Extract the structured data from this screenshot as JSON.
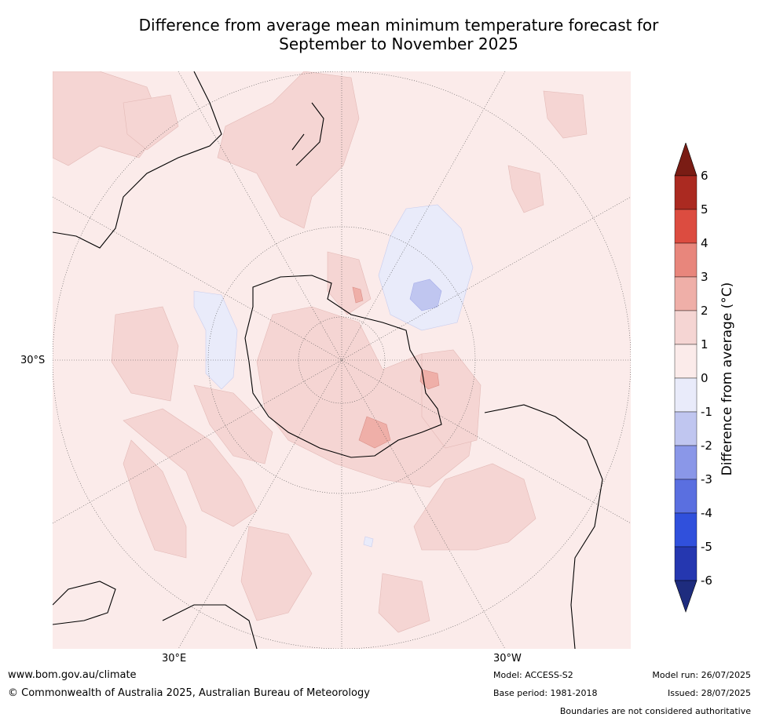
{
  "title_line1": "Difference from average mean minimum temperature forecast for",
  "title_line2": "September to November 2025",
  "map": {
    "lon_labels": [
      "30°E",
      "30°W"
    ],
    "lat_label": "30°S"
  },
  "colorbar": {
    "title": "Difference from average (°C)",
    "ticks": [
      "6",
      "5",
      "4",
      "3",
      "2",
      "1",
      "0",
      "-1",
      "-2",
      "-3",
      "-4",
      "-5",
      "-6"
    ],
    "colors": {
      "over": "#7a1c14",
      "5_to_6": "#ab2a21",
      "4_to_5": "#dc4c40",
      "3_to_4": "#e8867c",
      "2_to_3": "#efafa8",
      "1_to_2": "#f5d5d3",
      "0_to_1": "#fbebea",
      "m1_to_0": "#e9ebfa",
      "m2_to_m1": "#c0c6f0",
      "m3_to_m2": "#8a97e8",
      "m4_to_m3": "#5a6fe0",
      "m5_to_m4": "#3050dc",
      "m6_to_m5": "#2537b0",
      "under": "#1e2c7e"
    }
  },
  "footer": {
    "url": "www.bom.gov.au/climate",
    "copyright": "© Commonwealth of Australia 2025, Australian Bureau of Meteorology",
    "model": "Model: ACCESS-S2",
    "base_period": "Base period: 1981-2018",
    "model_run": "Model run: 26/07/2025",
    "issued": "Issued: 28/07/2025",
    "disclaimer": "Boundaries are not considered authoritative"
  }
}
